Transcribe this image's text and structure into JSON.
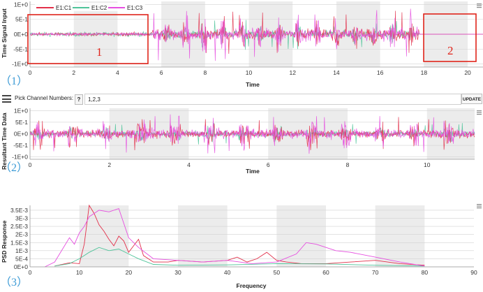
{
  "panel1": {
    "number_label": "（1）",
    "y_axis_title": "Time Signal Input",
    "x_axis_title": "Time",
    "y_ticks": [
      "1E+0",
      "5E-1",
      "0E+0",
      "-5E-1",
      "-1E+0"
    ],
    "x_ticks": [
      "0",
      "2",
      "4",
      "6",
      "8",
      "10",
      "12",
      "14",
      "16",
      "18",
      "20"
    ],
    "legend": [
      {
        "name": "E1:C1",
        "color": "#e2304a"
      },
      {
        "name": "E1:C2",
        "color": "#4fc49a"
      },
      {
        "name": "E1:C3",
        "color": "#e64fe0"
      }
    ],
    "box1_label": "1",
    "box2_label": "2",
    "menu_icon": "menu-icon"
  },
  "channel_picker": {
    "label": "Pick Channel Numbers:",
    "help": "?",
    "value": "1,2,3",
    "update_label": "UPDATE",
    "icon": "list-icon"
  },
  "panel2": {
    "number_label": "（2）",
    "y_axis_title": "Resultant Time Data",
    "x_axis_title": "Time",
    "y_ticks": [
      "1E+0",
      "5E-1",
      "0E+0",
      "-5E-1",
      "-1E+0"
    ],
    "x_ticks": [
      "0",
      "2",
      "4",
      "6",
      "8",
      "10"
    ],
    "menu_icon": "menu-icon"
  },
  "panel3": {
    "number_label": "（3）",
    "y_axis_title": "PSD Response",
    "x_axis_title": "Frequency",
    "y_ticks": [
      "3.5E-3",
      "3E-3",
      "2.5E-3",
      "2E-3",
      "1.5E-3",
      "1E-3",
      "5E-4",
      "0E+0"
    ],
    "x_ticks": [
      "0",
      "10",
      "20",
      "30",
      "40",
      "50",
      "60",
      "70",
      "80",
      "90"
    ],
    "menu_icon": "menu-icon"
  },
  "colors": {
    "c1": "#e2304a",
    "c2": "#4fc49a",
    "c3": "#e64fe0",
    "box": "#e0241b",
    "panel_number": "#3c9bd6"
  },
  "chart_data": [
    {
      "type": "line",
      "title": "",
      "xlabel": "Time",
      "ylabel": "Time Signal Input",
      "xlim": [
        0,
        20.7
      ],
      "ylim": [
        -1.1,
        1.1
      ],
      "legend": "top-left",
      "series": [
        {
          "name": "E1:C1",
          "amplitude_envelope": [
            {
              "x": [
                0,
                5.5
              ],
              "peak": 0.1
            },
            {
              "x": [
                5.5,
                17.8
              ],
              "peak": 0.75
            },
            {
              "x": [
                17.8,
                20.7
              ],
              "peak": 0.0
            }
          ]
        },
        {
          "name": "E1:C2",
          "amplitude_envelope": [
            {
              "x": [
                0,
                5.5
              ],
              "peak": 0.12
            },
            {
              "x": [
                5.5,
                17.8
              ],
              "peak": 0.5
            },
            {
              "x": [
                17.8,
                20.7
              ],
              "peak": 0.0
            }
          ]
        },
        {
          "name": "E1:C3",
          "amplitude_envelope": [
            {
              "x": [
                0,
                5.5
              ],
              "peak": 0.08
            },
            {
              "x": [
                5.5,
                17.8
              ],
              "peak": 0.85
            },
            {
              "x": [
                17.8,
                20.7
              ],
              "peak": 0.0
            }
          ]
        }
      ]
    },
    {
      "type": "line",
      "title": "",
      "xlabel": "Time",
      "ylabel": "Resultant Time Data",
      "xlim": [
        0,
        11.2
      ],
      "ylim": [
        -1.1,
        1.1
      ],
      "series": [
        {
          "name": "E1:C1",
          "amplitude_envelope": [
            {
              "x": [
                0,
                11.2
              ],
              "peak": 0.7
            }
          ]
        },
        {
          "name": "E1:C2",
          "amplitude_envelope": [
            {
              "x": [
                0,
                11.2
              ],
              "peak": 0.45
            }
          ]
        },
        {
          "name": "E1:C3",
          "amplitude_envelope": [
            {
              "x": [
                0,
                11.2
              ],
              "peak": 0.85
            }
          ]
        }
      ]
    },
    {
      "type": "line",
      "title": "",
      "xlabel": "Frequency",
      "ylabel": "PSD Response",
      "xlim": [
        0,
        90
      ],
      "ylim": [
        0,
        0.0038
      ],
      "series": [
        {
          "name": "E1:C1",
          "x": [
            5,
            8,
            10,
            11,
            12,
            13,
            14,
            15,
            16,
            17,
            18,
            19,
            20,
            21,
            22,
            23,
            25,
            28,
            30,
            35,
            40,
            42,
            44,
            46,
            48,
            50,
            52,
            55,
            60,
            65,
            70,
            75,
            80
          ],
          "y": [
            5e-05,
            0.00025,
            0.0002,
            0.0014,
            0.0038,
            0.0033,
            0.0026,
            0.0022,
            0.0017,
            0.0013,
            0.0019,
            0.0016,
            0.0009,
            0.0013,
            0.0017,
            0.0007,
            0.0003,
            0.0003,
            0.0004,
            0.0003,
            0.0004,
            0.0006,
            0.0003,
            0.0005,
            0.0009,
            0.0004,
            0.0003,
            0.0002,
            0.0002,
            0.0003,
            0.0004,
            0.0002,
            0.0001
          ]
        },
        {
          "name": "E1:C2",
          "x": [
            5,
            8,
            10,
            12,
            14,
            16,
            18,
            20,
            22,
            25,
            30,
            40,
            50,
            60,
            70,
            80
          ],
          "y": [
            5e-05,
            0.0002,
            0.0005,
            0.0009,
            0.0012,
            0.001,
            0.0011,
            0.0008,
            0.0005,
            0.00015,
            0.0001,
            0.00012,
            0.0002,
            0.00018,
            0.0001,
            5e-05
          ]
        },
        {
          "name": "E1:C3",
          "x": [
            3,
            5,
            8,
            9,
            10,
            11,
            12,
            14,
            16,
            18,
            20,
            22,
            25,
            30,
            35,
            40,
            45,
            50,
            54,
            56,
            58,
            60,
            62,
            65,
            70,
            75,
            80
          ],
          "y": [
            0.0,
            0.0003,
            0.0018,
            0.0014,
            0.0021,
            0.0025,
            0.0031,
            0.0035,
            0.0034,
            0.0036,
            0.0018,
            0.0012,
            0.0005,
            0.0004,
            0.0003,
            0.0004,
            0.0002,
            0.0003,
            0.0008,
            0.0015,
            0.0014,
            0.0012,
            0.001,
            0.0009,
            0.0006,
            0.0003,
            5e-05
          ]
        }
      ]
    }
  ]
}
